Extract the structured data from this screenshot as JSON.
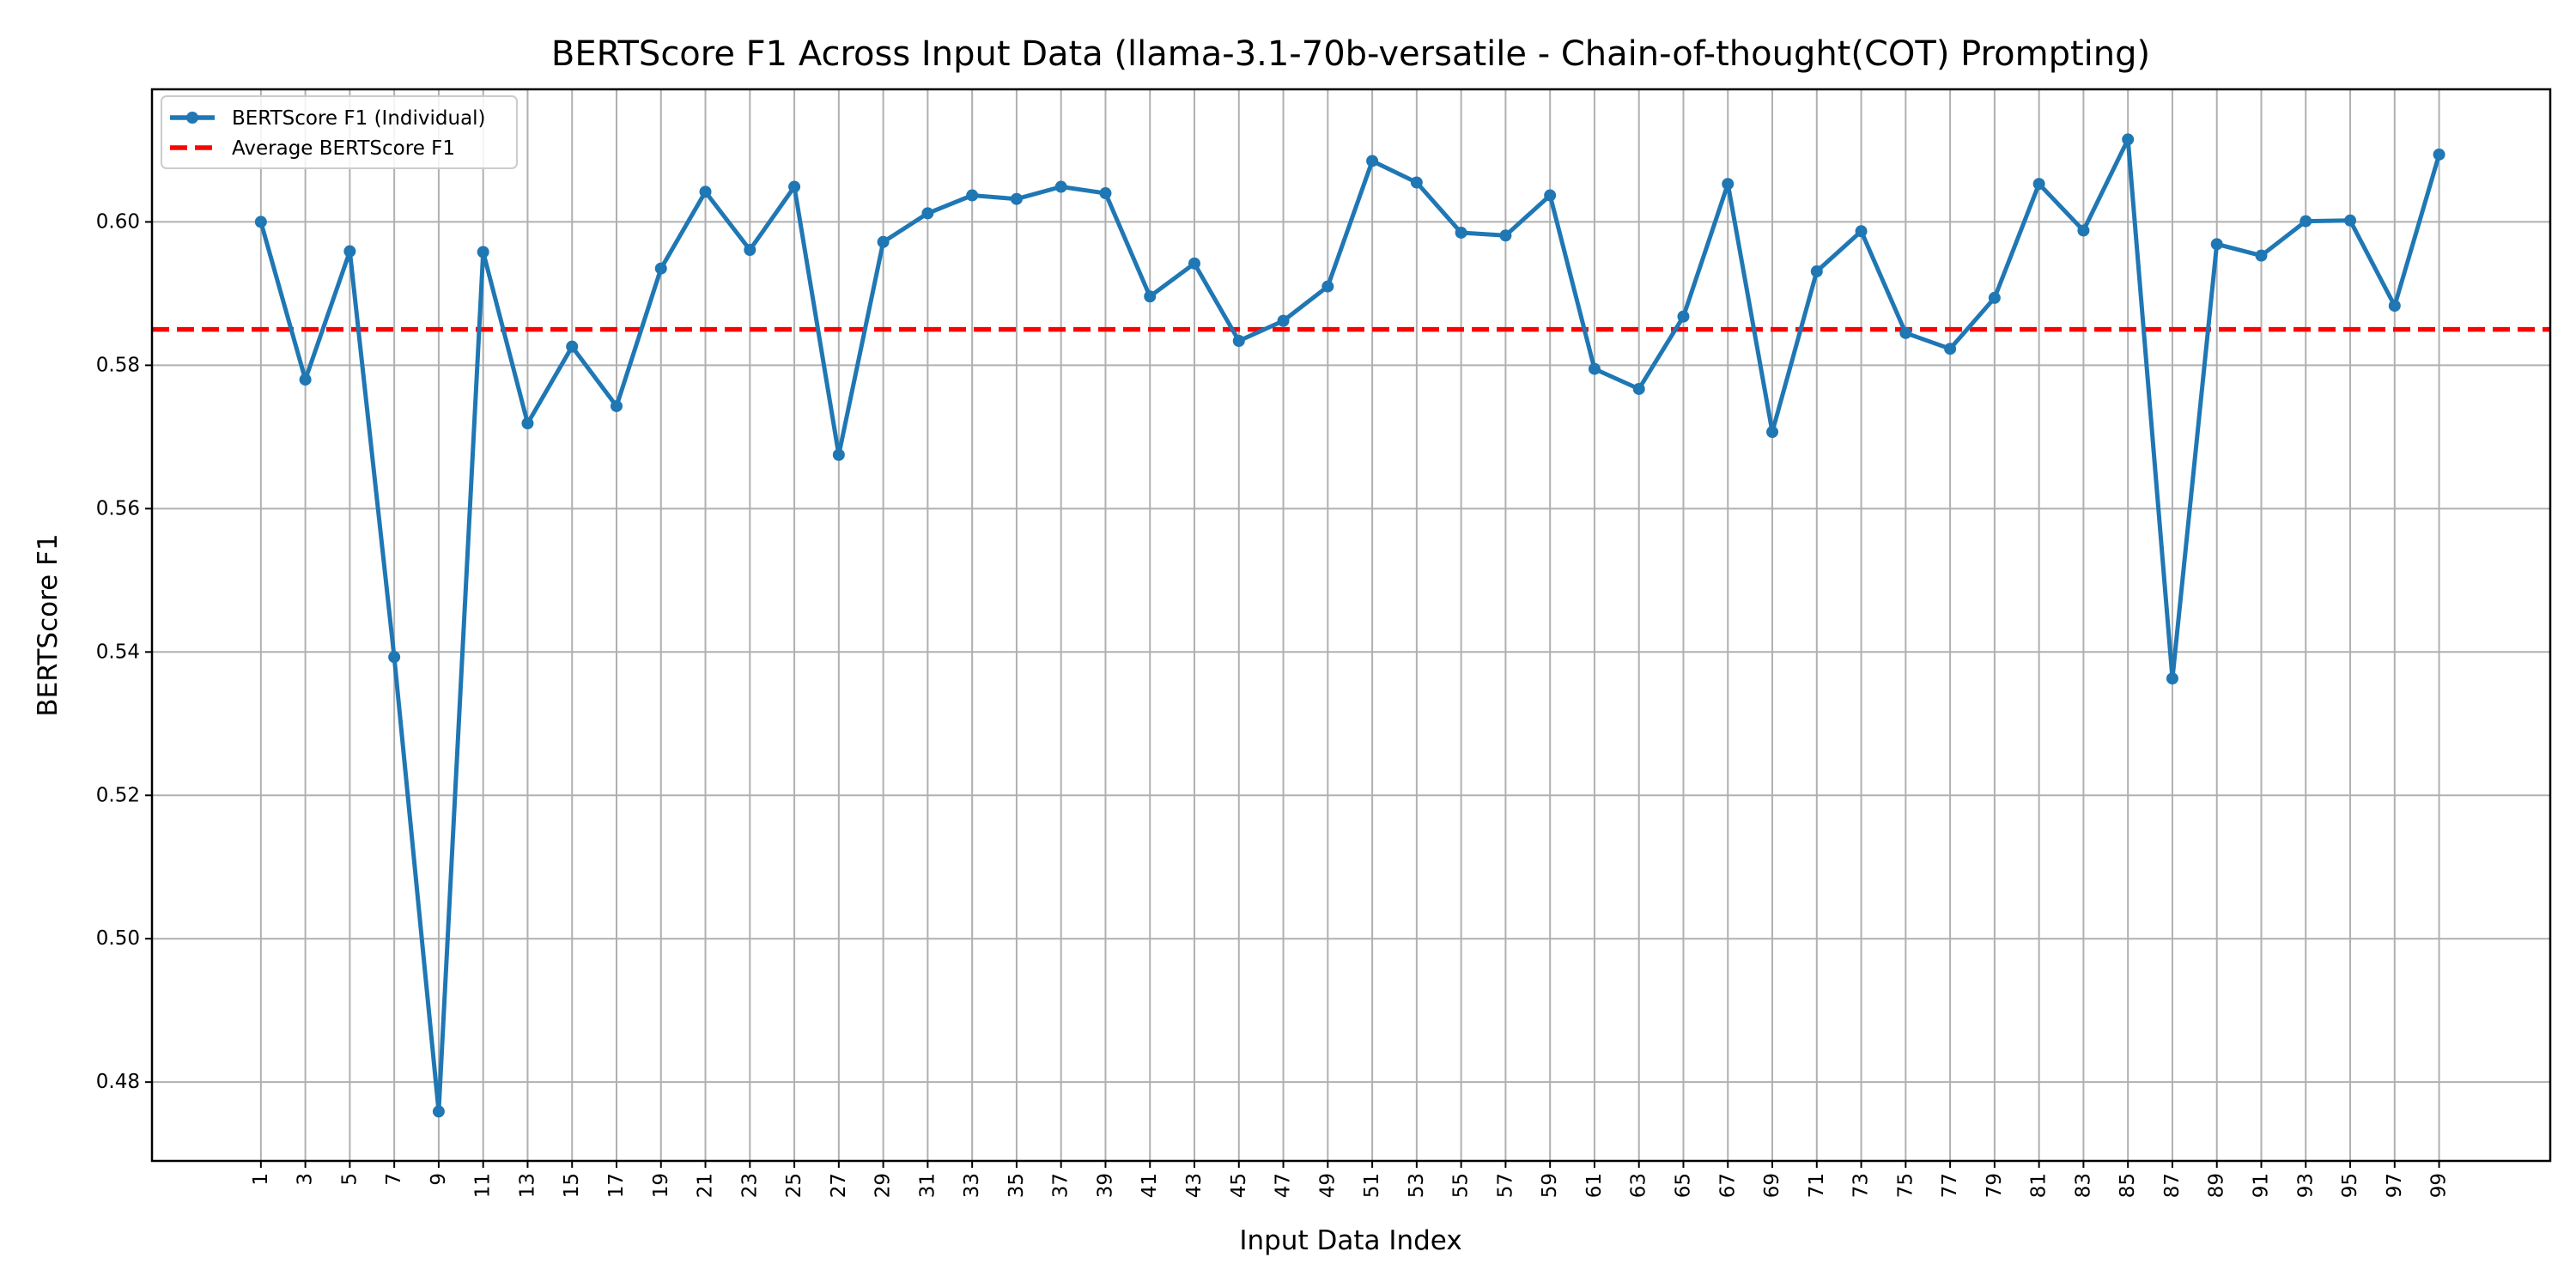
{
  "chart_data": {
    "type": "line",
    "title": "BERTScore F1 Across Input Data (llama-3.1-70b-versatile - Chain-of-thought(COT) Prompting)",
    "xlabel": "Input Data Index",
    "ylabel": "BERTScore F1",
    "x": [
      1,
      3,
      5,
      7,
      9,
      11,
      13,
      15,
      17,
      19,
      21,
      23,
      25,
      27,
      29,
      31,
      33,
      35,
      37,
      39,
      41,
      43,
      45,
      47,
      49,
      51,
      53,
      55,
      57,
      59,
      61,
      63,
      65,
      67,
      69,
      71,
      73,
      75,
      77,
      79,
      81,
      83,
      85,
      87,
      89,
      91,
      93,
      95,
      97,
      99
    ],
    "x_tick_labels": [
      "1",
      "3",
      "5",
      "7",
      "9",
      "11",
      "13",
      "15",
      "17",
      "19",
      "21",
      "23",
      "25",
      "27",
      "29",
      "31",
      "33",
      "35",
      "37",
      "39",
      "41",
      "43",
      "45",
      "47",
      "49",
      "51",
      "53",
      "55",
      "57",
      "59",
      "61",
      "63",
      "65",
      "67",
      "69",
      "71",
      "73",
      "75",
      "77",
      "79",
      "81",
      "83",
      "85",
      "87",
      "89",
      "91",
      "93",
      "95",
      "97",
      "99"
    ],
    "y_ticks": [
      0.48,
      0.5,
      0.52,
      0.54,
      0.56,
      0.58,
      0.6
    ],
    "y_tick_labels": [
      "0.48",
      "0.50",
      "0.52",
      "0.54",
      "0.56",
      "0.58",
      "0.60"
    ],
    "xlim": [
      -3.9,
      104
    ],
    "ylim": [
      0.469,
      0.6185
    ],
    "grid": true,
    "series": [
      {
        "name": "BERTScore F1 (Individual)",
        "color": "#1f77b4",
        "style": "solid-line-with-markers",
        "values": [
          0.6,
          0.578,
          0.5959,
          0.5393,
          0.4759,
          0.5958,
          0.5719,
          0.5826,
          0.5743,
          0.5935,
          0.6042,
          0.5961,
          0.6049,
          0.5675,
          0.5972,
          0.6012,
          0.6037,
          0.6032,
          0.6049,
          0.604,
          0.5896,
          0.5942,
          0.5834,
          0.5862,
          0.591,
          0.6085,
          0.6055,
          0.5985,
          0.5981,
          0.6037,
          0.5795,
          0.5767,
          0.5868,
          0.6053,
          0.5707,
          0.5931,
          0.5987,
          0.5845,
          0.5823,
          0.5894,
          0.6053,
          0.5988,
          0.6115,
          0.5363,
          0.5969,
          0.5953,
          0.6001,
          0.6002,
          0.5883,
          0.6094
        ]
      }
    ],
    "reference_lines": [
      {
        "name": "Average BERTScore F1",
        "y": 0.585,
        "color": "#ff0000",
        "style": "dashed"
      }
    ],
    "legend": {
      "position": "top-left",
      "entries": [
        "BERTScore F1 (Individual)",
        "Average BERTScore F1"
      ]
    }
  }
}
